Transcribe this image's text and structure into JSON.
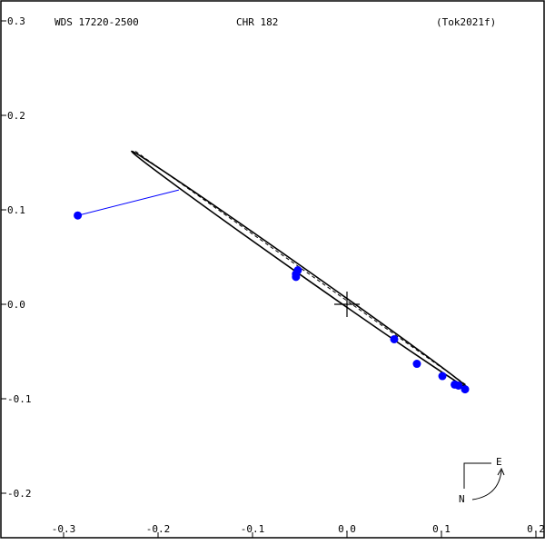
{
  "header": {
    "left": "WDS 17220-2500",
    "center": "CHR 182",
    "right": "(Tok2021f)"
  },
  "compass": {
    "east": "E",
    "north": "N"
  },
  "colors": {
    "points": "#0000ff",
    "residual_line": "#0000ff",
    "orbit": "#000000",
    "frame": "#000000"
  },
  "chart_data": {
    "type": "scatter",
    "xlim": [
      -0.34,
      0.2
    ],
    "ylim": [
      -0.23,
      0.3
    ],
    "x_ticks": [
      -0.3,
      -0.2,
      -0.1,
      0.0,
      0.1,
      0.2
    ],
    "x_tick_labels": [
      "-0.3",
      "-0.2",
      "-0.1",
      "0.0",
      "0.1",
      "0.2"
    ],
    "y_ticks": [
      0.3,
      0.2,
      0.1,
      0.0,
      -0.1,
      -0.2
    ],
    "y_tick_labels": [
      "0.3",
      "0.2",
      "0.1",
      "0.0",
      "-0.1",
      "-0.2"
    ],
    "primary_marker": [
      0.0,
      0.0
    ],
    "observations": [
      {
        "x": -0.285,
        "y": 0.094
      },
      {
        "x": -0.052,
        "y": 0.036
      },
      {
        "x": -0.054,
        "y": 0.032
      },
      {
        "x": -0.054,
        "y": 0.029
      },
      {
        "x": 0.05,
        "y": -0.037
      },
      {
        "x": 0.074,
        "y": -0.063
      },
      {
        "x": 0.101,
        "y": -0.076
      },
      {
        "x": 0.114,
        "y": -0.085
      },
      {
        "x": 0.118,
        "y": -0.086
      },
      {
        "x": 0.125,
        "y": -0.09
      }
    ],
    "residuals": [
      {
        "from": [
          -0.285,
          0.094
        ],
        "to": [
          -0.178,
          0.121
        ]
      }
    ],
    "orbit": {
      "end_a": [
        -0.228,
        0.162
      ],
      "end_b": [
        0.127,
        -0.088
      ],
      "half_width": 0.004
    },
    "orbit_dashed_axis": [
      [
        -0.224,
        0.162
      ],
      [
        0.127,
        -0.086
      ]
    ]
  }
}
